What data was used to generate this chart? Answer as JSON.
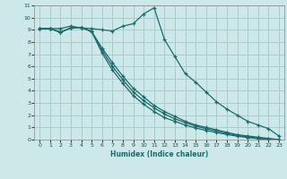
{
  "xlabel": "Humidex (Indice chaleur)",
  "ylabel": "",
  "bg_color": "#cce8e8",
  "grid_color": "#aacccc",
  "line_color": "#1a6b6b",
  "xlim": [
    -0.5,
    23.5
  ],
  "ylim": [
    0,
    11
  ],
  "xticks": [
    0,
    1,
    2,
    3,
    4,
    5,
    6,
    7,
    8,
    9,
    10,
    11,
    12,
    13,
    14,
    15,
    16,
    17,
    18,
    19,
    20,
    21,
    22,
    23
  ],
  "yticks": [
    0,
    1,
    2,
    3,
    4,
    5,
    6,
    7,
    8,
    9,
    10,
    11
  ],
  "lines": [
    {
      "x": [
        0,
        1,
        2,
        3,
        4,
        5,
        6,
        7,
        8,
        9,
        10,
        11,
        12,
        13,
        14,
        15,
        16,
        17,
        18,
        19,
        20,
        21,
        22,
        23
      ],
      "y": [
        9.1,
        9.1,
        9.1,
        9.3,
        9.15,
        9.1,
        9.0,
        8.9,
        9.3,
        9.5,
        10.3,
        10.8,
        8.2,
        6.8,
        5.4,
        4.7,
        3.9,
        3.1,
        2.5,
        2.0,
        1.5,
        1.2,
        0.9,
        0.3
      ]
    },
    {
      "x": [
        0,
        1,
        2,
        3,
        4,
        5,
        6,
        7,
        8,
        9,
        10,
        11,
        12,
        13,
        14,
        15,
        16,
        17,
        18,
        19,
        20,
        21,
        22,
        23
      ],
      "y": [
        9.1,
        9.1,
        8.8,
        9.15,
        9.2,
        8.85,
        7.5,
        6.3,
        5.2,
        4.2,
        3.5,
        2.8,
        2.3,
        1.9,
        1.5,
        1.2,
        1.0,
        0.8,
        0.6,
        0.4,
        0.3,
        0.2,
        0.1,
        0.0
      ]
    },
    {
      "x": [
        0,
        1,
        2,
        3,
        4,
        5,
        6,
        7,
        8,
        9,
        10,
        11,
        12,
        13,
        14,
        15,
        16,
        17,
        18,
        19,
        20,
        21,
        22,
        23
      ],
      "y": [
        9.1,
        9.1,
        8.8,
        9.15,
        9.2,
        8.85,
        7.3,
        6.0,
        4.9,
        3.9,
        3.2,
        2.6,
        2.1,
        1.7,
        1.4,
        1.1,
        0.9,
        0.7,
        0.5,
        0.35,
        0.22,
        0.12,
        0.05,
        0.0
      ]
    },
    {
      "x": [
        0,
        1,
        2,
        3,
        4,
        5,
        6,
        7,
        8,
        9,
        10,
        11,
        12,
        13,
        14,
        15,
        16,
        17,
        18,
        19,
        20,
        21,
        22,
        23
      ],
      "y": [
        9.1,
        9.1,
        8.8,
        9.15,
        9.2,
        8.85,
        7.1,
        5.7,
        4.6,
        3.6,
        2.9,
        2.3,
        1.8,
        1.5,
        1.2,
        0.95,
        0.75,
        0.58,
        0.42,
        0.28,
        0.17,
        0.08,
        0.02,
        0.0
      ]
    }
  ]
}
